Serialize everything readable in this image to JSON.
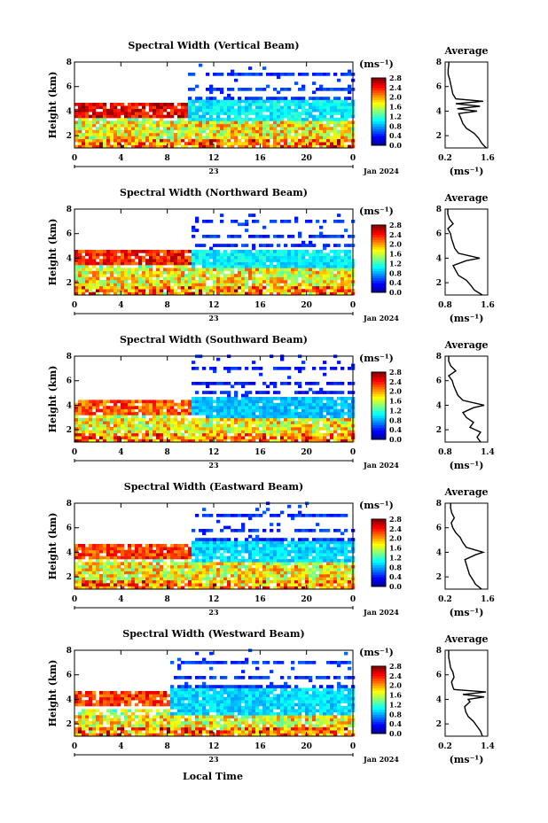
{
  "figure": {
    "xlabel": "Local Time",
    "date_label": "Jan 2024",
    "day_label": "23",
    "colorbar_unit": "(ms⁻¹)",
    "colorbar_ticks": [
      "0.0",
      "0.4",
      "0.8",
      "1.2",
      "1.6",
      "2.0",
      "2.4",
      "2.8"
    ],
    "avg_title": "Average",
    "avg_unit": "(ms⁻¹)",
    "ylabel": "Height (km)"
  },
  "chart_data": [
    {
      "type": "heatmap",
      "title": "Spectral Width (Vertical Beam)",
      "xlabel": "Local Time",
      "ylabel": "Height (km)",
      "x_ticks": [
        "0",
        "4",
        "8",
        "12",
        "16",
        "20",
        "0"
      ],
      "y_ticks": [
        "2",
        "4",
        "6",
        "8"
      ],
      "xlim": [
        0,
        24
      ],
      "ylim": [
        1,
        8
      ],
      "clim": [
        0,
        2.8
      ],
      "summary": {
        "transition_hour": 9.5,
        "lower_layer_top_km": 3.0,
        "upper_layer_bottom_km": 3.4,
        "upper_layer_top_km": 4.8,
        "upper_sparse_top_km": 7.8,
        "early_cloud_top_km": 4.6,
        "early_cloud_level": 2.2,
        "late_upper_level": 0.5,
        "mid_band_level": 1.1
      },
      "avg": {
        "title": "Average",
        "xlim": [
          0.2,
          1.6
        ],
        "x_ticks": [
          "0.2",
          "1.6"
        ],
        "ylim": [
          1,
          8
        ],
        "y_ticks": [
          "2",
          "4",
          "6",
          "8"
        ],
        "h": [
          1.0,
          1.4,
          1.8,
          2.2,
          2.6,
          3.0,
          3.4,
          3.8,
          4.0,
          4.2,
          4.4,
          4.6,
          4.8,
          5.0,
          5.4,
          5.8,
          6.2,
          6.6,
          7.0,
          7.4,
          7.8,
          8.0
        ],
        "v": [
          1.55,
          1.4,
          1.3,
          1.15,
          0.9,
          0.78,
          0.72,
          0.65,
          1.25,
          0.6,
          1.35,
          0.55,
          1.45,
          0.55,
          0.45,
          0.42,
          0.38,
          0.35,
          0.3,
          0.3,
          0.32,
          0.32
        ]
      }
    },
    {
      "type": "heatmap",
      "title": "Spectral Width (Northward Beam)",
      "xlabel": "Local Time",
      "ylabel": "Height (km)",
      "x_ticks": [
        "0",
        "4",
        "8",
        "12",
        "16",
        "20",
        "0"
      ],
      "y_ticks": [
        "2",
        "4",
        "6",
        "8"
      ],
      "xlim": [
        0,
        24
      ],
      "ylim": [
        1,
        8
      ],
      "clim": [
        0,
        2.8
      ],
      "summary": {
        "transition_hour": 10.0,
        "lower_layer_top_km": 3.0,
        "upper_layer_bottom_km": 3.2,
        "upper_layer_top_km": 4.6,
        "upper_sparse_top_km": 7.6,
        "early_cloud_top_km": 4.6,
        "early_cloud_level": 2.1,
        "late_upper_level": 0.5,
        "mid_band_level": 1.1
      },
      "avg": {
        "title": "Average",
        "xlim": [
          0.8,
          1.6
        ],
        "x_ticks": [
          "0.8",
          "1.6"
        ],
        "ylim": [
          1,
          8
        ],
        "y_ticks": [
          "2",
          "4",
          "6",
          "8"
        ],
        "h": [
          1.0,
          1.4,
          1.8,
          2.2,
          2.6,
          3.0,
          3.4,
          3.8,
          4.0,
          4.4,
          4.8,
          5.2,
          5.6,
          6.0,
          6.4,
          6.8,
          7.2,
          7.6,
          8.0
        ],
        "v": [
          1.5,
          1.35,
          1.28,
          1.2,
          1.05,
          1.0,
          0.95,
          1.2,
          1.45,
          1.05,
          0.98,
          0.95,
          0.92,
          0.9,
          0.85,
          0.95,
          0.88,
          0.85,
          0.85
        ]
      }
    },
    {
      "type": "heatmap",
      "title": "Spectral Width (Southward Beam)",
      "xlabel": "Local Time",
      "ylabel": "Height (km)",
      "x_ticks": [
        "0",
        "4",
        "8",
        "12",
        "16",
        "20",
        "0"
      ],
      "y_ticks": [
        "2",
        "4",
        "6",
        "8"
      ],
      "xlim": [
        0,
        24
      ],
      "ylim": [
        1,
        8
      ],
      "clim": [
        0,
        2.8
      ],
      "summary": {
        "transition_hour": 10.0,
        "lower_layer_top_km": 2.8,
        "upper_layer_bottom_km": 3.2,
        "upper_layer_top_km": 4.6,
        "upper_sparse_top_km": 8.0,
        "early_cloud_top_km": 4.4,
        "early_cloud_level": 1.9,
        "late_upper_level": 0.4,
        "mid_band_level": 0.9
      },
      "avg": {
        "title": "Average",
        "xlim": [
          0.8,
          1.4
        ],
        "x_ticks": [
          "0.8",
          "1.4"
        ],
        "ylim": [
          1,
          8
        ],
        "y_ticks": [
          "2",
          "4",
          "6",
          "8"
        ],
        "h": [
          1.0,
          1.4,
          1.8,
          2.2,
          2.6,
          3.0,
          3.4,
          3.8,
          4.0,
          4.4,
          4.8,
          5.2,
          5.6,
          6.0,
          6.4,
          6.8,
          7.2,
          7.6,
          8.0
        ],
        "v": [
          1.3,
          1.25,
          1.3,
          1.15,
          1.2,
          1.1,
          1.05,
          1.2,
          1.35,
          1.05,
          0.98,
          0.95,
          0.92,
          0.9,
          0.85,
          0.95,
          0.88,
          0.85,
          0.85
        ]
      }
    },
    {
      "type": "heatmap",
      "title": "Spectral Width (Eastward Beam)",
      "xlabel": "Local Time",
      "ylabel": "Height (km)",
      "x_ticks": [
        "0",
        "4",
        "8",
        "12",
        "16",
        "20",
        "0"
      ],
      "y_ticks": [
        "2",
        "4",
        "6",
        "8"
      ],
      "xlim": [
        0,
        24
      ],
      "ylim": [
        1,
        8
      ],
      "clim": [
        0,
        2.8
      ],
      "summary": {
        "transition_hour": 10.0,
        "lower_layer_top_km": 3.0,
        "upper_layer_bottom_km": 3.2,
        "upper_layer_top_km": 4.8,
        "upper_sparse_top_km": 8.0,
        "early_cloud_top_km": 4.6,
        "early_cloud_level": 2.0,
        "late_upper_level": 0.5,
        "mid_band_level": 1.0
      },
      "avg": {
        "title": "Average",
        "xlim": [
          0.2,
          1.6
        ],
        "x_ticks": [
          "0.2",
          "1.6"
        ],
        "ylim": [
          1,
          8
        ],
        "y_ticks": [
          "2",
          "4",
          "6",
          "8"
        ],
        "h": [
          1.0,
          1.4,
          1.8,
          2.2,
          2.6,
          3.0,
          3.4,
          3.8,
          4.0,
          4.4,
          4.8,
          5.2,
          5.6,
          6.0,
          6.4,
          6.8,
          7.2,
          7.6,
          8.0
        ],
        "v": [
          1.4,
          1.2,
          1.1,
          1.0,
          0.95,
          0.9,
          0.85,
          1.2,
          1.45,
          0.9,
          0.78,
          0.7,
          0.55,
          0.45,
          0.4,
          0.5,
          0.42,
          0.38,
          0.38
        ]
      }
    },
    {
      "type": "heatmap",
      "title": "Spectral Width (Westward Beam)",
      "xlabel": "Local Time",
      "ylabel": "Height (km)",
      "x_ticks": [
        "0",
        "4",
        "8",
        "12",
        "16",
        "20",
        "0"
      ],
      "y_ticks": [
        "2",
        "4",
        "6",
        "8"
      ],
      "xlim": [
        0,
        24
      ],
      "ylim": [
        1,
        8
      ],
      "clim": [
        0,
        2.8
      ],
      "summary": {
        "transition_hour": 8.0,
        "lower_layer_top_km": 2.6,
        "upper_layer_bottom_km": 2.8,
        "upper_layer_top_km": 4.8,
        "upper_sparse_top_km": 8.0,
        "early_cloud_top_km": 4.6,
        "early_cloud_level": 2.0,
        "late_upper_level": 0.5,
        "mid_band_level": 1.0
      },
      "avg": {
        "title": "Average",
        "xlim": [
          0.2,
          1.4
        ],
        "x_ticks": [
          "0.2",
          "1.4"
        ],
        "ylim": [
          1,
          8
        ],
        "y_ticks": [
          "2",
          "4",
          "6",
          "8"
        ],
        "h": [
          1.0,
          1.4,
          1.8,
          2.2,
          2.6,
          3.0,
          3.4,
          3.8,
          4.0,
          4.2,
          4.4,
          4.6,
          4.8,
          5.0,
          5.4,
          5.8,
          6.2,
          6.6,
          7.0,
          7.4,
          7.8,
          8.0
        ],
        "v": [
          1.25,
          1.2,
          1.1,
          1.0,
          0.85,
          0.78,
          0.75,
          0.9,
          0.85,
          1.3,
          0.7,
          1.35,
          0.45,
          0.42,
          0.38,
          0.45,
          0.42,
          0.35,
          0.33,
          0.3,
          0.3,
          0.3
        ]
      }
    }
  ]
}
